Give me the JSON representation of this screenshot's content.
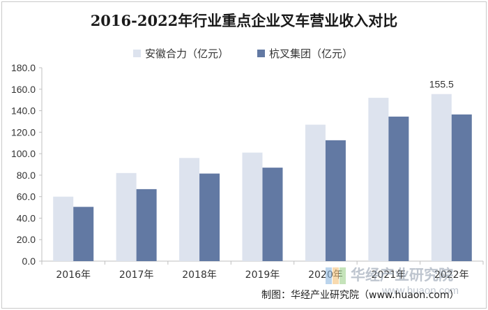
{
  "chart_data": {
    "type": "bar",
    "title": "2016-2022年行业重点企业叉车营业收入对比",
    "categories": [
      "2016年",
      "2017年",
      "2018年",
      "2019年",
      "2020年",
      "2021年",
      "2022年"
    ],
    "series": [
      {
        "name": "安徽合力（亿元）",
        "color": "#dde3ee",
        "values": [
          60.0,
          82.0,
          96.0,
          101.0,
          127.0,
          152.0,
          155.5
        ]
      },
      {
        "name": "杭叉集团（亿元）",
        "color": "#6279a3",
        "values": [
          50.5,
          67.0,
          81.5,
          87.0,
          112.5,
          134.5,
          136.5
        ]
      }
    ],
    "ylim": [
      0,
      180
    ],
    "yticks": [
      "0.0",
      "20.0",
      "40.0",
      "60.0",
      "80.0",
      "100.0",
      "120.0",
      "140.0",
      "160.0",
      "180.0"
    ],
    "data_labels": [
      {
        "series": 0,
        "index": 6,
        "text": "155.5"
      }
    ],
    "legend_position": "top-center",
    "grid": false,
    "xlabel": "",
    "ylabel": ""
  },
  "source_text": "制图：华经产业研究院（www.huaon.com）",
  "watermark": {
    "text": "华经产业研究院",
    "url": "www.huaon.com"
  }
}
